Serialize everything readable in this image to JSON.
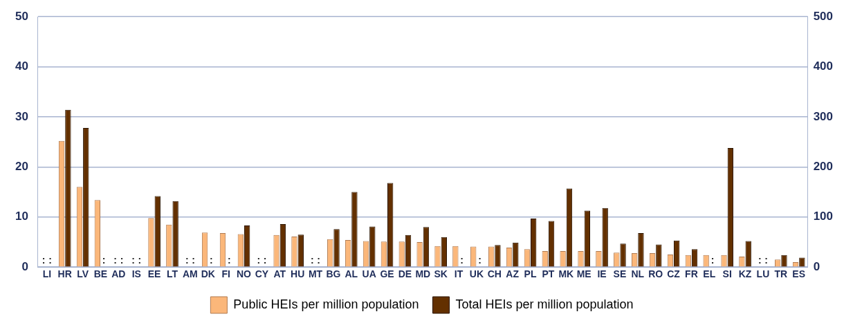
{
  "chart_data": {
    "type": "bar",
    "categories": [
      "LI",
      "HR",
      "LV",
      "BE",
      "AD",
      "IS",
      "EE",
      "LT",
      "AM",
      "DK",
      "FI",
      "NO",
      "CY",
      "AT",
      "HU",
      "MT",
      "BG",
      "AL",
      "UA",
      "GE",
      "DE",
      "MD",
      "SK",
      "IT",
      "UK",
      "CH",
      "AZ",
      "PL",
      "PT",
      "MK",
      "ME",
      "IE",
      "SE",
      "NL",
      "RO",
      "CZ",
      "FR",
      "EL",
      "SI",
      "KZ",
      "LU",
      "TR",
      "ES"
    ],
    "series": [
      {
        "name": "Public HEIs per million population",
        "color": "#fbb77a",
        "values": [
          null,
          25.2,
          16.0,
          13.4,
          null,
          null,
          9.8,
          8.5,
          null,
          6.9,
          6.8,
          6.6,
          null,
          6.4,
          6.1,
          null,
          5.6,
          5.4,
          5.2,
          5.1,
          5.1,
          5.0,
          4.2,
          4.2,
          4.1,
          4.1,
          3.9,
          3.6,
          3.2,
          3.2,
          3.2,
          3.2,
          2.9,
          2.8,
          2.8,
          2.5,
          2.4,
          2.4,
          2.4,
          2.1,
          null,
          1.5,
          1.0
        ],
        "value_labels": [
          ":",
          null,
          null,
          null,
          ":",
          ":",
          null,
          null,
          ":",
          null,
          null,
          null,
          ":",
          null,
          null,
          ":",
          null,
          null,
          null,
          null,
          null,
          null,
          null,
          null,
          null,
          null,
          null,
          null,
          null,
          null,
          null,
          null,
          null,
          null,
          null,
          null,
          null,
          null,
          null,
          null,
          ":",
          null,
          null
        ]
      },
      {
        "name": "Total HEIs per million population",
        "color": "#633000",
        "values": [
          null,
          31.4,
          27.8,
          null,
          null,
          null,
          14.2,
          13.2,
          null,
          null,
          null,
          8.3,
          null,
          8.6,
          6.5,
          null,
          7.6,
          15.0,
          8.1,
          16.8,
          6.4,
          8.0,
          6.0,
          null,
          null,
          4.4,
          4.9,
          9.7,
          9.2,
          15.7,
          11.3,
          11.8,
          4.7,
          6.8,
          4.5,
          5.3,
          3.6,
          null,
          23.8,
          5.2,
          null,
          2.4,
          1.9
        ],
        "value_labels": [
          ":",
          null,
          null,
          ":",
          ":",
          ":",
          null,
          null,
          ":",
          ":",
          ":",
          null,
          ":",
          null,
          null,
          ":",
          null,
          null,
          null,
          null,
          null,
          null,
          null,
          ":",
          ":",
          null,
          null,
          null,
          null,
          null,
          null,
          null,
          null,
          null,
          null,
          null,
          null,
          ":",
          null,
          null,
          ":",
          null,
          null
        ]
      }
    ],
    "ylim": [
      0,
      50
    ],
    "yticks": [
      0,
      10,
      20,
      30,
      40,
      50
    ],
    "y2lim": [
      0,
      500
    ],
    "y2ticks": [
      0,
      100,
      200,
      300,
      400,
      500
    ],
    "grid": "y",
    "legend": "bottom"
  }
}
